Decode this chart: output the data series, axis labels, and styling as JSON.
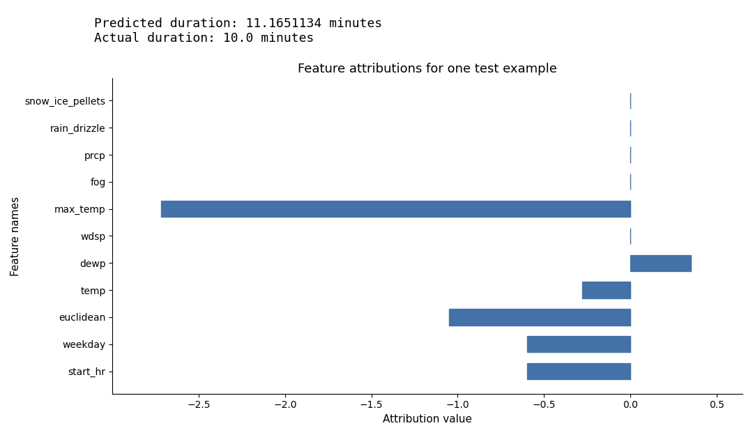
{
  "title": "Feature attributions for one test example",
  "xlabel": "Attribution value",
  "ylabel": "Feature names",
  "suptitle_line1": "Predicted duration: 11.1651134 minutes",
  "suptitle_line2": "Actual duration: 10.0 minutes",
  "features": [
    "start_hr",
    "weekday",
    "euclidean",
    "temp",
    "dewp",
    "wdsp",
    "max_temp",
    "fog",
    "prcp",
    "rain_drizzle",
    "snow_ice_pellets"
  ],
  "attributions": [
    -0.6,
    -0.6,
    -1.05,
    -0.28,
    0.35,
    0.0,
    -2.72,
    0.0,
    0.0,
    0.0,
    0.0
  ],
  "bar_color": "#4472a8",
  "background_color": "#ffffff",
  "xlim": [
    -3.0,
    0.65
  ],
  "xticks": [
    -2.5,
    -2.0,
    -1.5,
    -1.0,
    -0.5,
    0.0,
    0.5
  ],
  "title_fontsize": 13,
  "label_fontsize": 11,
  "tick_fontsize": 10,
  "suptitle_fontsize": 13,
  "suptitle_fontfamily": "monospace",
  "bar_height": 0.6
}
